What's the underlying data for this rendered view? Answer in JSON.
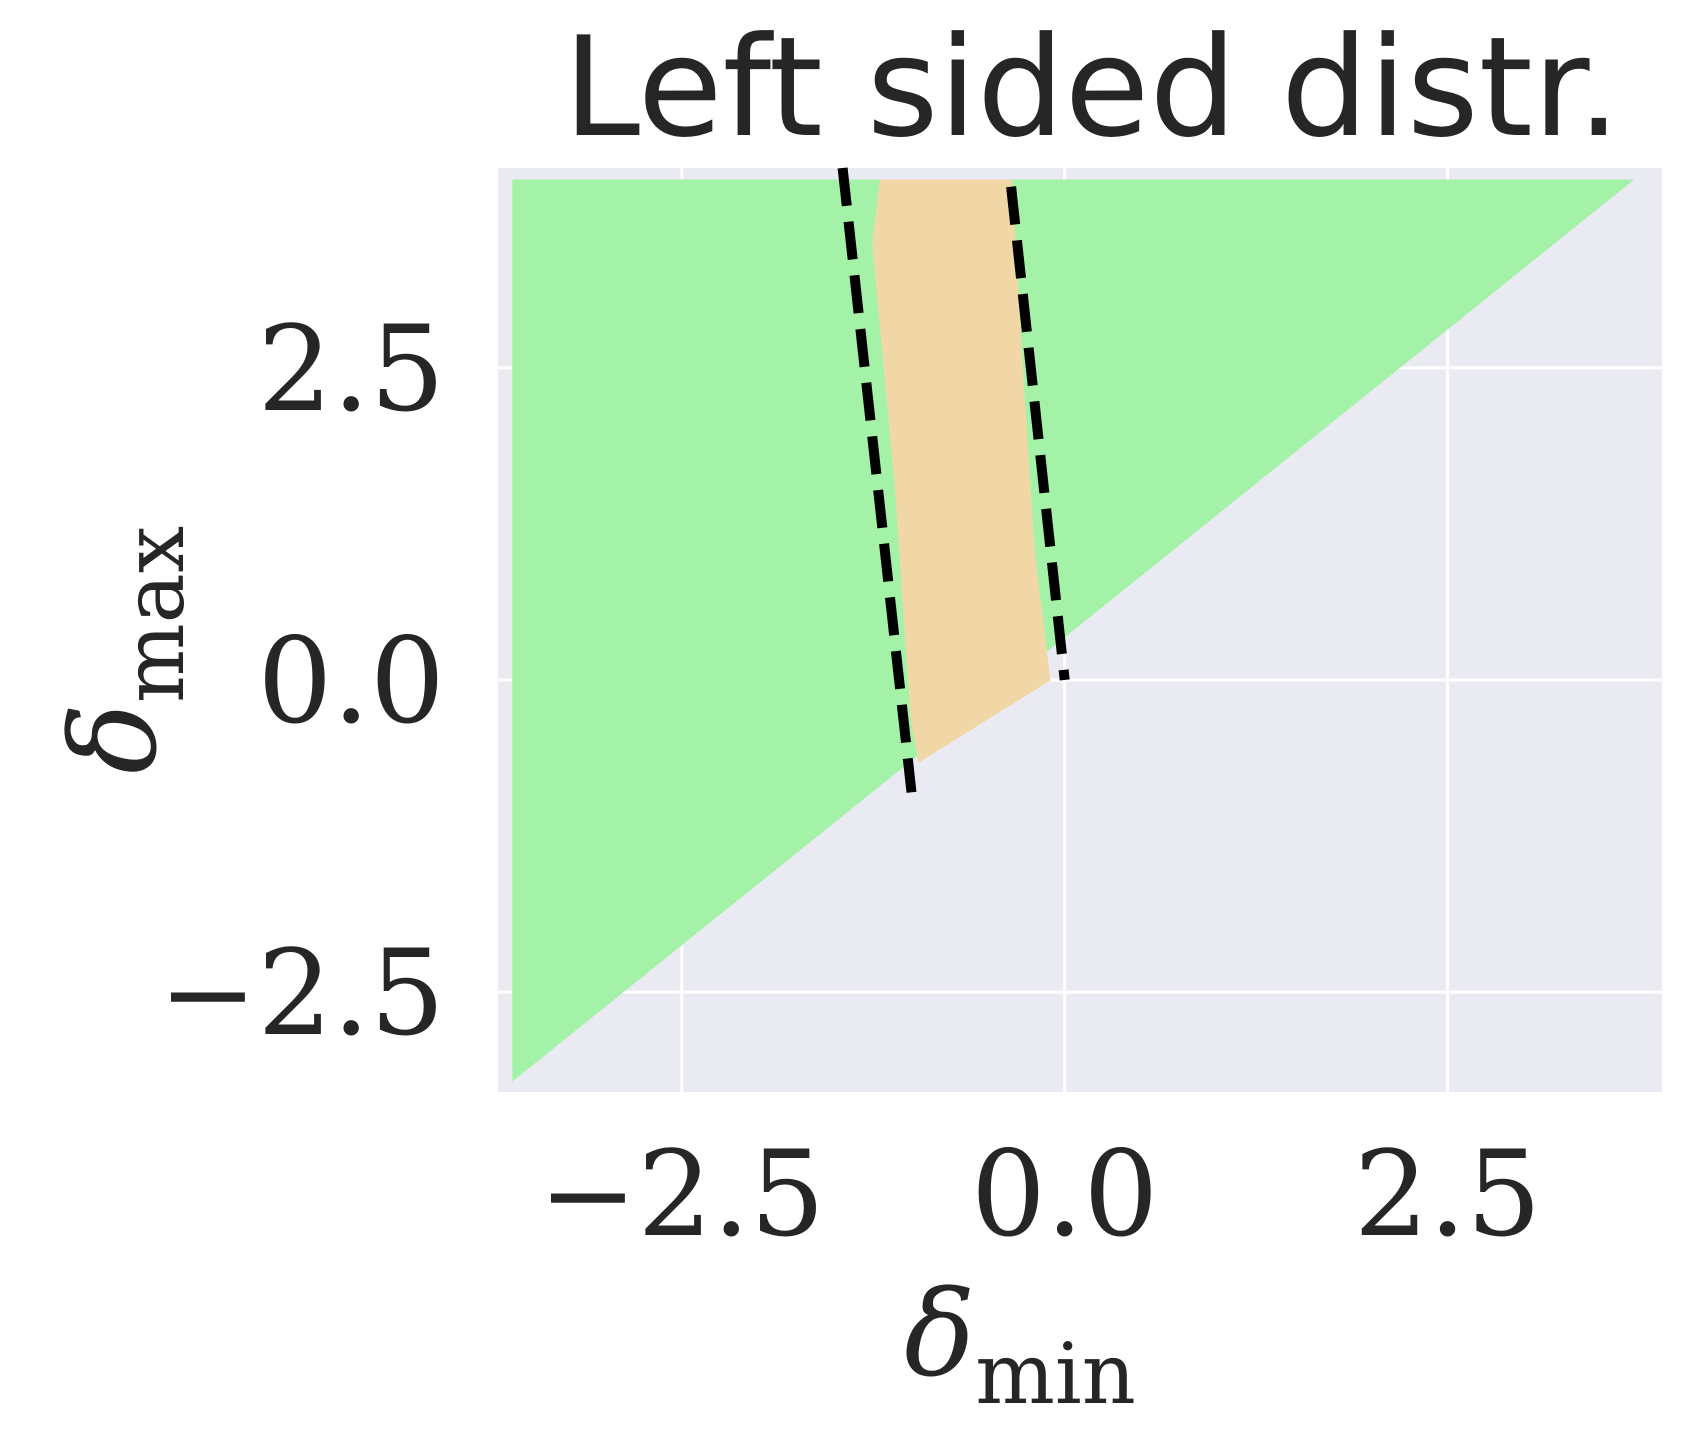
{
  "chart_data": {
    "type": "area",
    "title": "Left sided distr.",
    "xlabel": {
      "symbol": "δ",
      "subscript": "min"
    },
    "ylabel": {
      "symbol": "δ",
      "subscript": "max"
    },
    "xlim": [
      -3.7,
      3.9
    ],
    "ylim": [
      -3.3,
      4.1
    ],
    "xticks": [
      -2.5,
      0.0,
      2.5
    ],
    "yticks": [
      -2.5,
      0.0,
      2.5
    ],
    "xtick_labels": [
      "−2.5",
      "0.0",
      "2.5"
    ],
    "ytick_labels": [
      "−2.5",
      "0.0",
      "2.5"
    ],
    "grid": true,
    "legend": "none",
    "colors": {
      "background": "#eaeaf2",
      "grid": "#ffffff",
      "green_region": "#a4f2a7",
      "orange_region": "#f1d6a6",
      "dashed_line": "#000000",
      "text": "#262626"
    },
    "series": [
      {
        "kind": "fill",
        "color_key": "green_region",
        "points": [
          [
            -3.6,
            -3.2
          ],
          [
            -3.6,
            4.0
          ],
          [
            3.7,
            4.0
          ]
        ]
      },
      {
        "kind": "fill",
        "color_key": "orange_region",
        "points": [
          [
            -1.2,
            4.0
          ],
          [
            -0.35,
            4.0
          ],
          [
            -0.28,
            2.5
          ],
          [
            -0.2,
            1.0
          ],
          [
            -0.1,
            0.0
          ],
          [
            -0.95,
            -0.65
          ],
          [
            -1.0,
            -0.3
          ],
          [
            -1.1,
            1.5
          ],
          [
            -1.25,
            3.5
          ]
        ]
      },
      {
        "kind": "dashed_line",
        "color_key": "dashed_line",
        "points": [
          [
            -1.45,
            4.1
          ],
          [
            -1.0,
            -0.9
          ]
        ]
      },
      {
        "kind": "dashed_line",
        "color_key": "dashed_line",
        "points": [
          [
            -0.35,
            3.95
          ],
          [
            0.0,
            0.0
          ]
        ]
      }
    ]
  }
}
